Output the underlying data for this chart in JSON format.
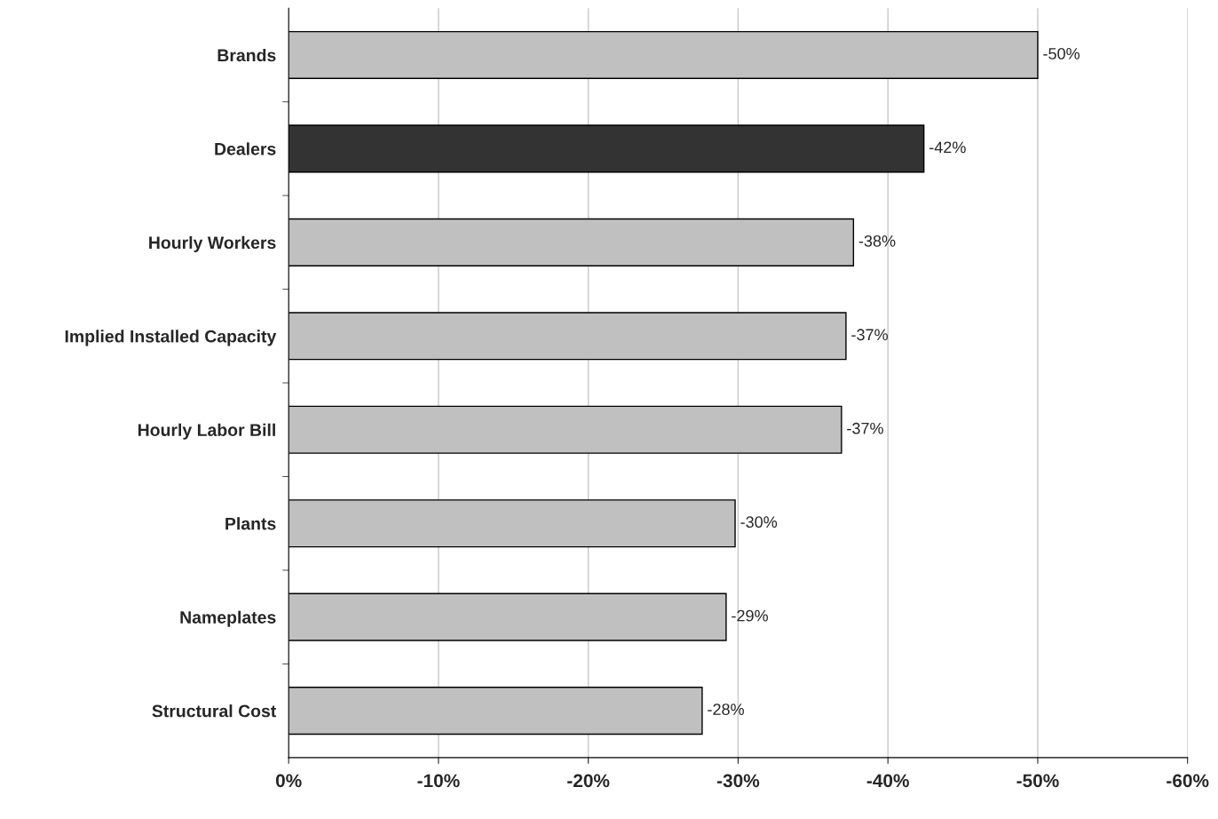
{
  "chart_data": {
    "type": "bar",
    "orientation": "horizontal",
    "categories": [
      "Brands",
      "Dealers",
      "Hourly Workers",
      "Implied Installed Capacity",
      "Hourly Labor Bill",
      "Plants",
      "Nameplates",
      "Structural Cost"
    ],
    "values": [
      -50.0,
      -42.4,
      -37.7,
      -37.2,
      -36.9,
      -29.8,
      -29.2,
      -27.6
    ],
    "value_labels": [
      "-50%",
      "-42%",
      "-38%",
      "-37%",
      "-37%",
      "-30%",
      "-29%",
      "-28%"
    ],
    "colors": [
      "#c0c0c0",
      "#333333",
      "#c0c0c0",
      "#c0c0c0",
      "#c0c0c0",
      "#c0c0c0",
      "#c0c0c0",
      "#c0c0c0"
    ],
    "xlim": [
      0,
      -60
    ],
    "xticks": [
      {
        "value": 0,
        "label": "0%"
      },
      {
        "value": -10,
        "label": "-10%"
      },
      {
        "value": -20,
        "label": "-20%"
      },
      {
        "value": -30,
        "label": "-30%"
      },
      {
        "value": -40,
        "label": "-40%"
      },
      {
        "value": -50,
        "label": "-50%"
      },
      {
        "value": -60,
        "label": "-60%"
      }
    ],
    "grid": "x",
    "legend": false
  }
}
